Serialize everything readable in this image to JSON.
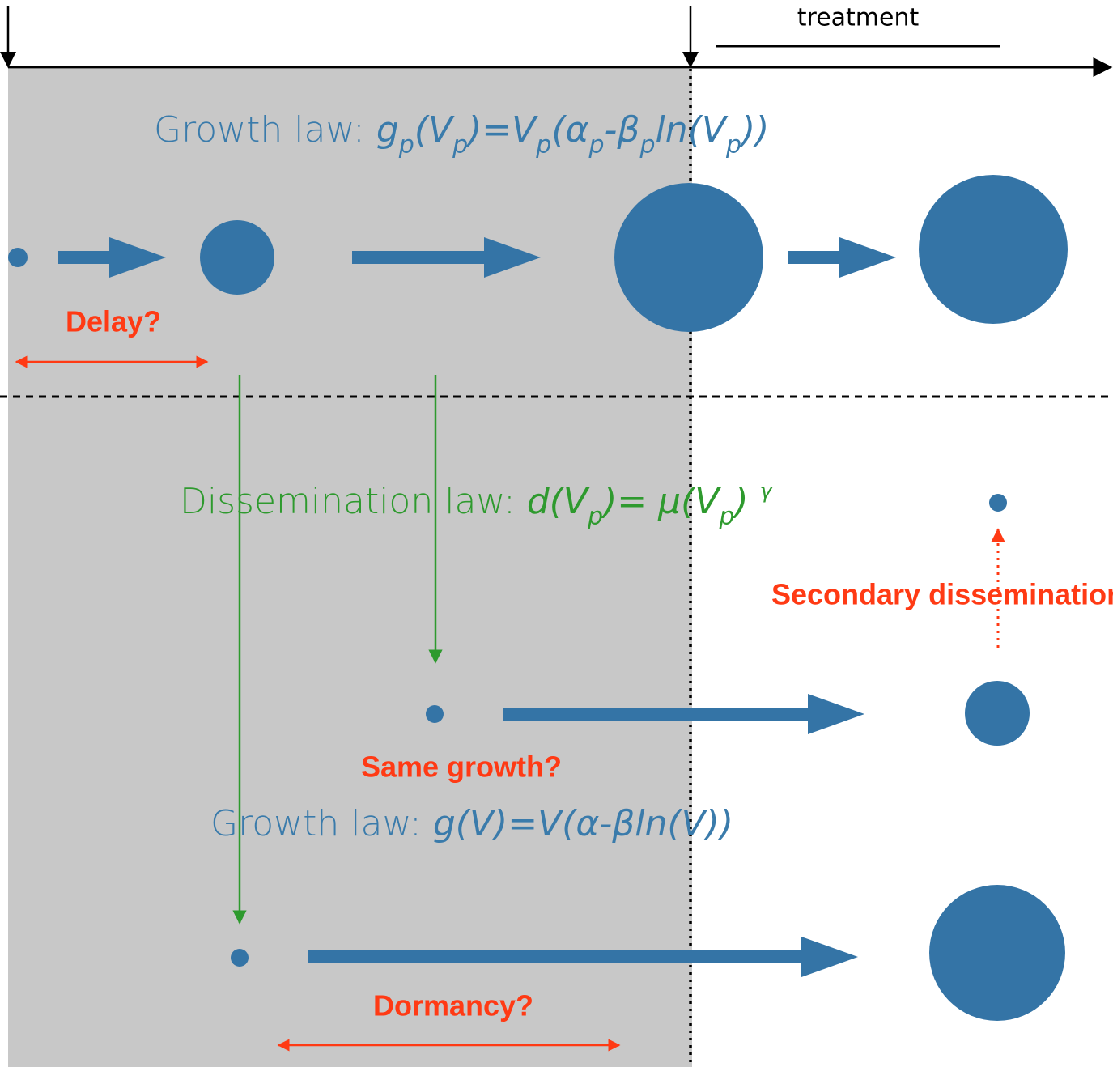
{
  "header": {
    "treatment": "treatment"
  },
  "growth_primary": {
    "label": "Growth law: ",
    "formula": [
      {
        "text": "g"
      },
      {
        "text": "p",
        "sub": true
      },
      {
        "text": "(V"
      },
      {
        "text": "p",
        "sub": true
      },
      {
        "text": ")=V"
      },
      {
        "text": "p",
        "sub": true
      },
      {
        "text": "(α"
      },
      {
        "text": "p",
        "sub": true
      },
      {
        "text": "-β"
      },
      {
        "text": "p",
        "sub": true
      },
      {
        "text": "ln(V"
      },
      {
        "text": "p",
        "sub": true
      },
      {
        "text": "))"
      }
    ]
  },
  "delay": "Delay?",
  "dissemination": {
    "label": "Dissemination law: ",
    "formula": [
      {
        "text": "d(V"
      },
      {
        "text": "p",
        "sub": true
      },
      {
        "text": ")= μ(V"
      },
      {
        "text": "p",
        "sub": true
      },
      {
        "text": ") "
      },
      {
        "text": "γ",
        "sup": true
      }
    ]
  },
  "secondary": "Secondary dissemination?",
  "same_growth": "Same growth?",
  "growth_secondary": {
    "label": "Growth law: ",
    "formula": [
      {
        "text": "g(V)=V(α-βln(V))"
      }
    ]
  },
  "dormancy": "Dormancy?"
}
